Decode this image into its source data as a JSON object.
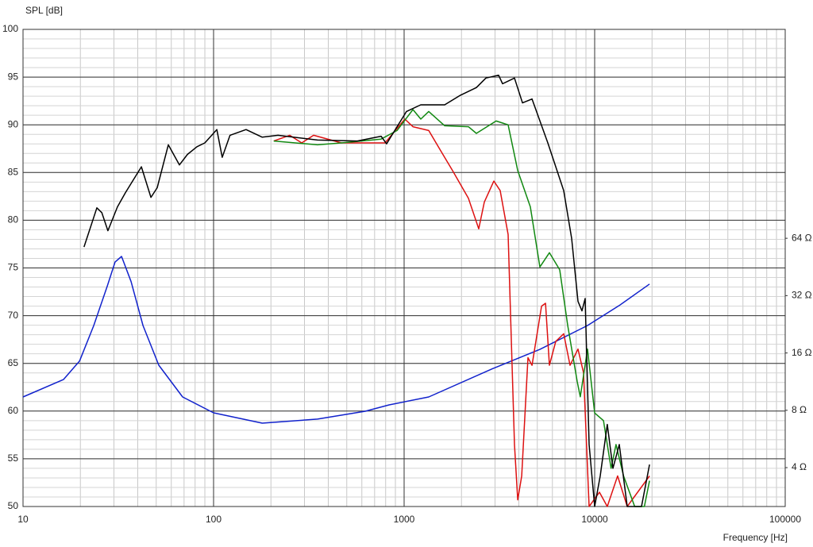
{
  "chart_data": {
    "type": "line",
    "y_label": "SPL [dB]",
    "x_label": "Frequency [Hz]",
    "xscale": "log",
    "y2scale": "log",
    "grid": true,
    "xlim": [
      10,
      100000
    ],
    "xticks": [
      10,
      100,
      1000,
      10000,
      100000
    ],
    "ylim": [
      50,
      100
    ],
    "yticks": [
      50,
      55,
      60,
      65,
      70,
      75,
      80,
      85,
      90,
      95,
      100
    ],
    "y2lim": [
      2.5,
      800
    ],
    "y2ticks": [
      {
        "value": 4,
        "label": "4 Ω"
      },
      {
        "value": 8,
        "label": "8 Ω"
      },
      {
        "value": 16,
        "label": "16 Ω"
      },
      {
        "value": 32,
        "label": "32 Ω"
      },
      {
        "value": 64,
        "label": "64 Ω"
      }
    ],
    "series": [
      {
        "color": "#000000",
        "x": [
          20.9,
          24.4,
          25.9,
          27.9,
          31.3,
          34.5,
          41.8,
          46.9,
          50.6,
          57.9,
          66.2,
          72.9,
          81.8,
          90,
          104,
          111,
          122,
          148,
          180,
          218,
          351,
          568,
          757,
          809,
          918,
          1029,
          1223,
          1632,
          1976,
          2394,
          2686,
          3133,
          3285,
          3795,
          4179,
          4689,
          5679,
          6880,
          7568,
          8176,
          8576,
          8912,
          9350,
          10000,
          10690,
          11650,
          12470,
          13460,
          14820,
          17620,
          19400
        ],
        "values": [
          77.2,
          81.3,
          80.8,
          78.9,
          81.4,
          82.9,
          85.6,
          82.4,
          83.4,
          87.9,
          85.8,
          86.9,
          87.7,
          88.1,
          89.5,
          86.6,
          88.9,
          89.5,
          88.7,
          88.9,
          88.4,
          88.3,
          88.8,
          88.0,
          89.8,
          91.4,
          92.1,
          92.1,
          93.1,
          93.9,
          94.9,
          95.2,
          94.3,
          94.9,
          92.3,
          92.7,
          88.1,
          83.1,
          78.1,
          71.5,
          70.5,
          71.8,
          56.5,
          50,
          53.2,
          58.6,
          54,
          56.5,
          50,
          50,
          54.4
        ]
      },
      {
        "color": "#118811",
        "x": [
          207,
          351,
          469,
          757,
          918,
          1112,
          1223,
          1346,
          1632,
          2176,
          2394,
          3040,
          3514,
          3945,
          4598,
          5158,
          5788,
          6557,
          7219,
          8094,
          8404,
          9173,
          10000,
          11120,
          12200,
          12950,
          14180,
          16220,
          18240,
          19400
        ],
        "values": [
          88.3,
          87.9,
          88.1,
          88.5,
          89.4,
          91.6,
          90.6,
          91.4,
          89.9,
          89.8,
          89.1,
          90.4,
          90.0,
          85.2,
          81.4,
          75.1,
          76.6,
          74.8,
          69.0,
          63.1,
          61.5,
          66.5,
          59.8,
          59,
          54,
          56.5,
          53.2,
          50,
          50,
          52.7
        ]
      },
      {
        "color": "#dd1111",
        "x": [
          207,
          251,
          290,
          335,
          469,
          794,
          1009,
          1112,
          1346,
          1555,
          1795,
          2176,
          2465,
          2636,
          2958,
          3192,
          3514,
          3795,
          3945,
          4139,
          4467,
          4689,
          5262,
          5521,
          5788,
          6250,
          6880,
          7426,
          8176,
          8743,
          9350,
          10590,
          11650,
          13200,
          14820,
          19400
        ],
        "values": [
          88.3,
          88.9,
          88.1,
          88.9,
          88.1,
          88.1,
          90.6,
          89.8,
          89.4,
          87.3,
          85.2,
          82.3,
          79.1,
          81.9,
          84.1,
          83.1,
          78.5,
          56.5,
          50.7,
          53.2,
          65.6,
          64.8,
          71.0,
          71.3,
          64.8,
          67.3,
          68.1,
          64.8,
          66.5,
          64.0,
          50,
          51.5,
          50,
          53.2,
          50,
          53.2
        ]
      },
      {
        "color": "#1122cc",
        "axis": "y2",
        "x": [
          10,
          16.3,
          19.8,
          23.5,
          27.7,
          30.4,
          32.9,
          36.9,
          42.6,
          51.6,
          68.8,
          100,
          180,
          351,
          625,
          834,
          1346,
          2901,
          5158,
          9173,
          13460,
          19400
        ],
        "values": [
          9.4,
          11.6,
          14.5,
          22.3,
          36,
          48,
          51.4,
          37.9,
          22.3,
          13.8,
          9.4,
          7.76,
          6.85,
          7.19,
          7.91,
          8.54,
          9.4,
          13.2,
          16.7,
          22.3,
          28.4,
          36.8
        ]
      }
    ]
  }
}
